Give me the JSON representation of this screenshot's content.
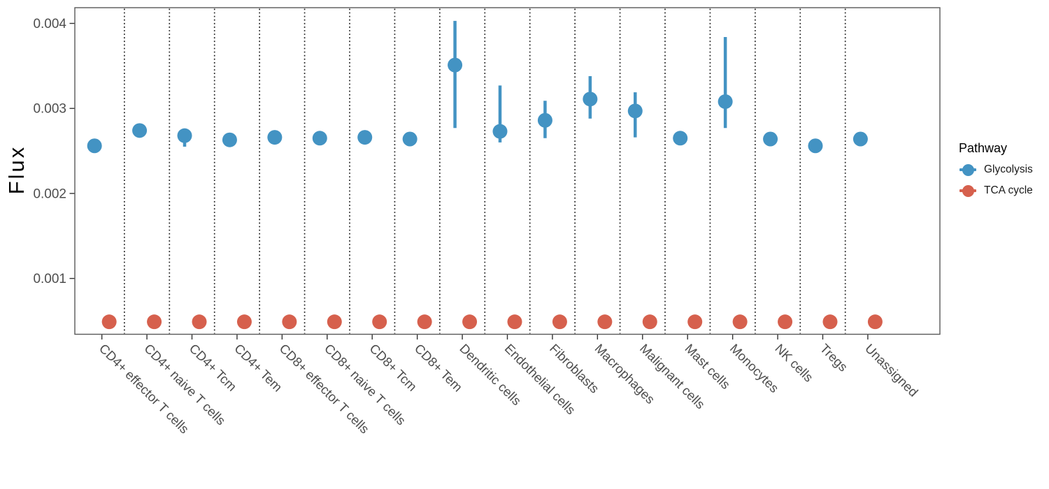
{
  "chart_data": {
    "type": "scatter",
    "title": "",
    "xlabel": "",
    "ylabel": "Flux",
    "legend_title": "Pathway",
    "legend_position": "right",
    "grid": "vertical dotted separators between categories, no horizontal gridlines",
    "yticks": [
      0.001,
      0.002,
      0.003,
      0.004
    ],
    "ylim": [
      0.00035,
      0.00419
    ],
    "categories": [
      "CD4+ effector T cells",
      "CD4+ naive T cells",
      "CD4+ Tcm",
      "CD4+ Tem",
      "CD8+ effector T cells",
      "CD8+ naive T cells",
      "CD8+ Tcm",
      "CD8+ Tem",
      "Dendritic cells",
      "Endothelial cells",
      "Fibroblasts",
      "Macrophages",
      "Malignant cells",
      "Mast cells",
      "Monocytes",
      "NK cells",
      "Tregs",
      "Unassigned"
    ],
    "series": [
      {
        "name": "Glycolysis",
        "color": "#4393C3",
        "points": [
          {
            "mean": 0.00256,
            "lo": 0.00256,
            "hi": 0.00256
          },
          {
            "mean": 0.00274,
            "lo": 0.00274,
            "hi": 0.00274
          },
          {
            "mean": 0.00268,
            "lo": 0.00255,
            "hi": 0.00273
          },
          {
            "mean": 0.00263,
            "lo": 0.00263,
            "hi": 0.00263
          },
          {
            "mean": 0.00266,
            "lo": 0.00266,
            "hi": 0.00266
          },
          {
            "mean": 0.00265,
            "lo": 0.00265,
            "hi": 0.00265
          },
          {
            "mean": 0.00266,
            "lo": 0.00266,
            "hi": 0.00266
          },
          {
            "mean": 0.00264,
            "lo": 0.00264,
            "hi": 0.00264
          },
          {
            "mean": 0.00351,
            "lo": 0.00277,
            "hi": 0.00403
          },
          {
            "mean": 0.00273,
            "lo": 0.0026,
            "hi": 0.00327
          },
          {
            "mean": 0.00286,
            "lo": 0.00265,
            "hi": 0.00309
          },
          {
            "mean": 0.00311,
            "lo": 0.00288,
            "hi": 0.00338
          },
          {
            "mean": 0.00297,
            "lo": 0.00266,
            "hi": 0.00319
          },
          {
            "mean": 0.00265,
            "lo": 0.00265,
            "hi": 0.00265
          },
          {
            "mean": 0.00308,
            "lo": 0.00277,
            "hi": 0.00384
          },
          {
            "mean": 0.00264,
            "lo": 0.00264,
            "hi": 0.00264
          },
          {
            "mean": 0.00256,
            "lo": 0.00256,
            "hi": 0.00256
          },
          {
            "mean": 0.00264,
            "lo": 0.00264,
            "hi": 0.00264
          }
        ]
      },
      {
        "name": "TCA cycle",
        "color": "#D6604D",
        "points": [
          {
            "mean": 0.00049,
            "lo": 0.00049,
            "hi": 0.00049
          },
          {
            "mean": 0.00049,
            "lo": 0.00049,
            "hi": 0.00049
          },
          {
            "mean": 0.00049,
            "lo": 0.00049,
            "hi": 0.00049
          },
          {
            "mean": 0.00049,
            "lo": 0.00049,
            "hi": 0.00049
          },
          {
            "mean": 0.00049,
            "lo": 0.00049,
            "hi": 0.00049
          },
          {
            "mean": 0.00049,
            "lo": 0.00049,
            "hi": 0.00049
          },
          {
            "mean": 0.00049,
            "lo": 0.00049,
            "hi": 0.00049
          },
          {
            "mean": 0.00049,
            "lo": 0.00049,
            "hi": 0.00049
          },
          {
            "mean": 0.00049,
            "lo": 0.00049,
            "hi": 0.00049
          },
          {
            "mean": 0.00049,
            "lo": 0.00049,
            "hi": 0.00049
          },
          {
            "mean": 0.00049,
            "lo": 0.00049,
            "hi": 0.00049
          },
          {
            "mean": 0.00049,
            "lo": 0.00049,
            "hi": 0.00049
          },
          {
            "mean": 0.00049,
            "lo": 0.00049,
            "hi": 0.00049
          },
          {
            "mean": 0.00049,
            "lo": 0.00049,
            "hi": 0.00049
          },
          {
            "mean": 0.00049,
            "lo": 0.00049,
            "hi": 0.00049
          },
          {
            "mean": 0.00049,
            "lo": 0.00049,
            "hi": 0.00049
          },
          {
            "mean": 0.00049,
            "lo": 0.00049,
            "hi": 0.00049
          },
          {
            "mean": 0.00049,
            "lo": 0.00049,
            "hi": 0.00049
          }
        ]
      }
    ],
    "style_colors": {
      "axis_text": "#4d4d4d",
      "tick_mark": "#333333",
      "panel_border": "#595959",
      "separator": "#1a1a1a"
    }
  }
}
